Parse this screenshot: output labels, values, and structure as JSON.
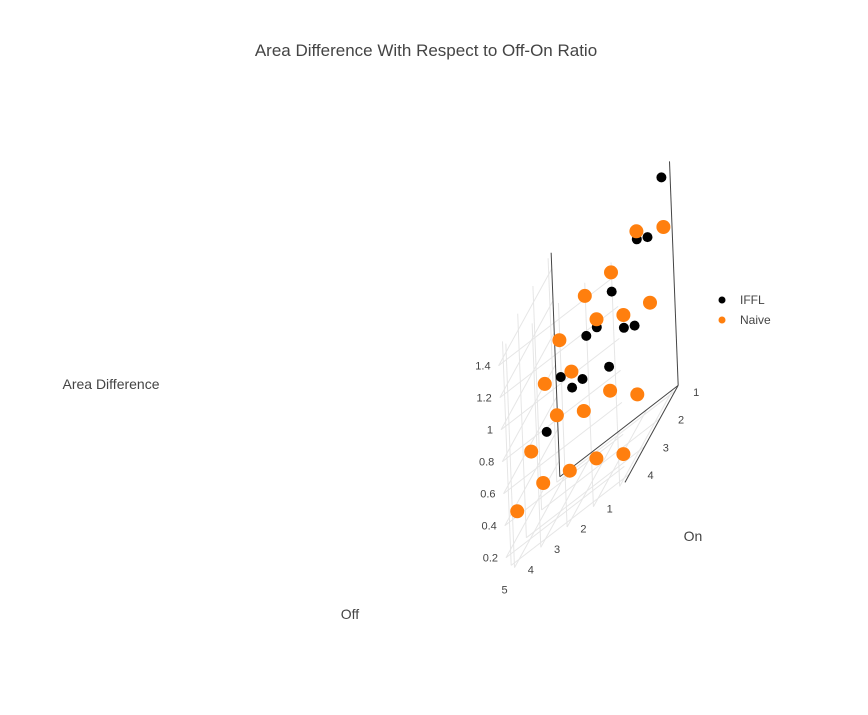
{
  "chart_data": {
    "type": "scatter",
    "title": "Area Difference With Respect to Off-On Ratio",
    "x_axis": {
      "label": "Off",
      "ticks": [
        "1",
        "2",
        "3",
        "4",
        "5"
      ]
    },
    "y_axis": {
      "label": "On",
      "ticks": [
        "1",
        "2",
        "3",
        "4"
      ]
    },
    "z_axis": {
      "label": "Area Difference",
      "ticks": [
        "0.2",
        "0.4",
        "0.6",
        "0.8",
        "1",
        "1.2",
        "1.4"
      ]
    },
    "legend_position": "right",
    "series": [
      {
        "name": "IFFL",
        "color": "#000000",
        "points": [
          {
            "off": 1,
            "on": 1,
            "z": 1.46
          },
          {
            "off": 1,
            "on": 2,
            "z": 1.26
          },
          {
            "off": 1,
            "on": 3,
            "z": 0.88
          },
          {
            "off": 1,
            "on": 4,
            "z": 0.25
          },
          {
            "off": 2,
            "on": 1,
            "z": 1.2
          },
          {
            "off": 2,
            "on": 2,
            "z": 0.82
          },
          {
            "off": 2,
            "on": 3,
            "z": 0.75
          },
          {
            "off": 3,
            "on": 1,
            "z": 1.0
          },
          {
            "off": 3,
            "on": 2,
            "z": 0.95
          },
          {
            "off": 3,
            "on": 3,
            "z": 0.8
          },
          {
            "off": 4,
            "on": 1,
            "z": 0.85
          },
          {
            "off": 4,
            "on": 2,
            "z": 0.7
          },
          {
            "off": 5,
            "on": 1,
            "z": 0.72
          },
          {
            "off": 5,
            "on": 2,
            "z": 0.55
          }
        ]
      },
      {
        "name": "Naive",
        "color": "#ff7f0e",
        "points": [
          {
            "off": 1,
            "on": 1,
            "z": 1.15
          },
          {
            "off": 1,
            "on": 2,
            "z": 0.85
          },
          {
            "off": 1,
            "on": 3,
            "z": 0.45
          },
          {
            "off": 1,
            "on": 4,
            "z": 0.25
          },
          {
            "off": 2,
            "on": 1,
            "z": 1.25
          },
          {
            "off": 2,
            "on": 2,
            "z": 0.9
          },
          {
            "off": 2,
            "on": 3,
            "z": 0.6
          },
          {
            "off": 2,
            "on": 4,
            "z": 0.35
          },
          {
            "off": 3,
            "on": 1,
            "z": 1.12
          },
          {
            "off": 3,
            "on": 2,
            "z": 1.0
          },
          {
            "off": 3,
            "on": 3,
            "z": 0.6
          },
          {
            "off": 3,
            "on": 4,
            "z": 0.4
          },
          {
            "off": 4,
            "on": 1,
            "z": 1.1
          },
          {
            "off": 4,
            "on": 2,
            "z": 0.8
          },
          {
            "off": 4,
            "on": 3,
            "z": 0.7
          },
          {
            "off": 4,
            "on": 4,
            "z": 0.45
          },
          {
            "off": 5,
            "on": 1,
            "z": 0.95
          },
          {
            "off": 5,
            "on": 2,
            "z": 0.85
          },
          {
            "off": 5,
            "on": 3,
            "z": 0.6
          },
          {
            "off": 5,
            "on": 4,
            "z": 0.4
          }
        ]
      }
    ]
  }
}
